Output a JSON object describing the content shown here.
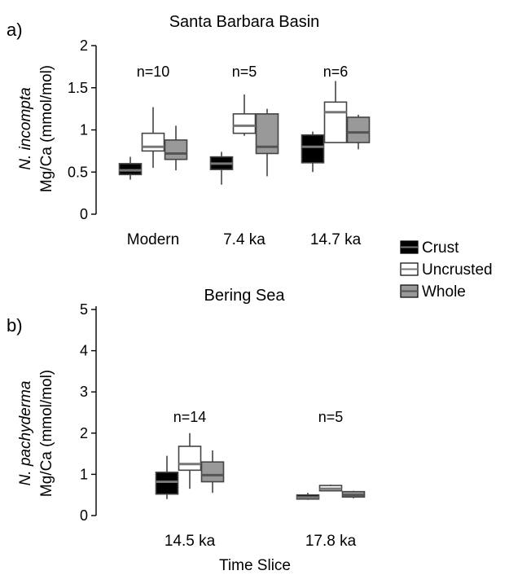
{
  "legend": [
    {
      "key": "crust",
      "label": "Crust",
      "fill": "#000000",
      "median": "#777777"
    },
    {
      "key": "uncrusted",
      "label": "Uncrusted",
      "fill": "#ffffff",
      "median": "#777777"
    },
    {
      "key": "whole",
      "label": "Whole",
      "fill": "#999999",
      "median": "#555555"
    }
  ],
  "chart_data": [
    {
      "type": "boxplot",
      "panel_label": "a)",
      "title": "Santa Barbara Basin",
      "ylabel_species": "N. incompta",
      "ylabel_unit": "Mg/Ca (mmol/mol)",
      "ylim": [
        0,
        2
      ],
      "yticks": [
        "0",
        "0.5",
        "1",
        "1.5",
        "2"
      ],
      "categories": [
        "Modern",
        "7.4 ka",
        "14.7 ka"
      ],
      "n_labels": [
        "n=10",
        "n=5",
        "n=6"
      ],
      "series": [
        {
          "name": "Crust",
          "boxes": [
            {
              "min": 0.41,
              "q1": 0.47,
              "median": 0.52,
              "q3": 0.6,
              "max": 0.68
            },
            {
              "min": 0.35,
              "q1": 0.53,
              "median": 0.6,
              "q3": 0.68,
              "max": 0.74
            },
            {
              "min": 0.5,
              "q1": 0.61,
              "median": 0.8,
              "q3": 0.94,
              "max": 0.98
            }
          ]
        },
        {
          "name": "Uncrusted",
          "boxes": [
            {
              "min": 0.55,
              "q1": 0.75,
              "median": 0.8,
              "q3": 0.96,
              "max": 1.27
            },
            {
              "min": 0.93,
              "q1": 0.96,
              "median": 1.05,
              "q3": 1.19,
              "max": 1.42
            },
            {
              "min": 0.85,
              "q1": 0.85,
              "median": 1.21,
              "q3": 1.33,
              "max": 1.58
            }
          ]
        },
        {
          "name": "Whole",
          "boxes": [
            {
              "min": 0.52,
              "q1": 0.65,
              "median": 0.72,
              "q3": 0.88,
              "max": 1.05
            },
            {
              "min": 0.45,
              "q1": 0.72,
              "median": 0.8,
              "q3": 1.19,
              "max": 1.25
            },
            {
              "min": 0.77,
              "q1": 0.85,
              "median": 0.97,
              "q3": 1.15,
              "max": 1.18
            }
          ]
        }
      ]
    },
    {
      "type": "boxplot",
      "panel_label": "b)",
      "title": "Bering Sea",
      "ylabel_species": "N. pachyderma",
      "ylabel_unit": "Mg/Ca (mmol/mol)",
      "xlabel": "Time Slice",
      "ylim": [
        0,
        5
      ],
      "yticks": [
        "0",
        "1",
        "2",
        "3",
        "4",
        "5"
      ],
      "categories": [
        "14.5 ka",
        "17.8 ka"
      ],
      "n_labels": [
        "n=14",
        "n=5"
      ],
      "series": [
        {
          "name": "Crust",
          "boxes": [
            {
              "min": 0.4,
              "q1": 0.52,
              "median": 0.82,
              "q3": 1.05,
              "max": 1.45
            },
            {
              "min": 0.38,
              "q1": 0.4,
              "median": 0.44,
              "q3": 0.5,
              "max": 0.55
            }
          ]
        },
        {
          "name": "Uncrusted",
          "boxes": [
            {
              "min": 0.65,
              "q1": 1.1,
              "median": 1.25,
              "q3": 1.68,
              "max": 2.0
            },
            {
              "min": 0.6,
              "q1": 0.6,
              "median": 0.65,
              "q3": 0.73,
              "max": 0.75
            }
          ]
        },
        {
          "name": "Whole",
          "boxes": [
            {
              "min": 0.55,
              "q1": 0.82,
              "median": 0.98,
              "q3": 1.3,
              "max": 1.58
            },
            {
              "min": 0.42,
              "q1": 0.45,
              "median": 0.5,
              "q3": 0.58,
              "max": 0.6
            }
          ]
        }
      ]
    }
  ]
}
